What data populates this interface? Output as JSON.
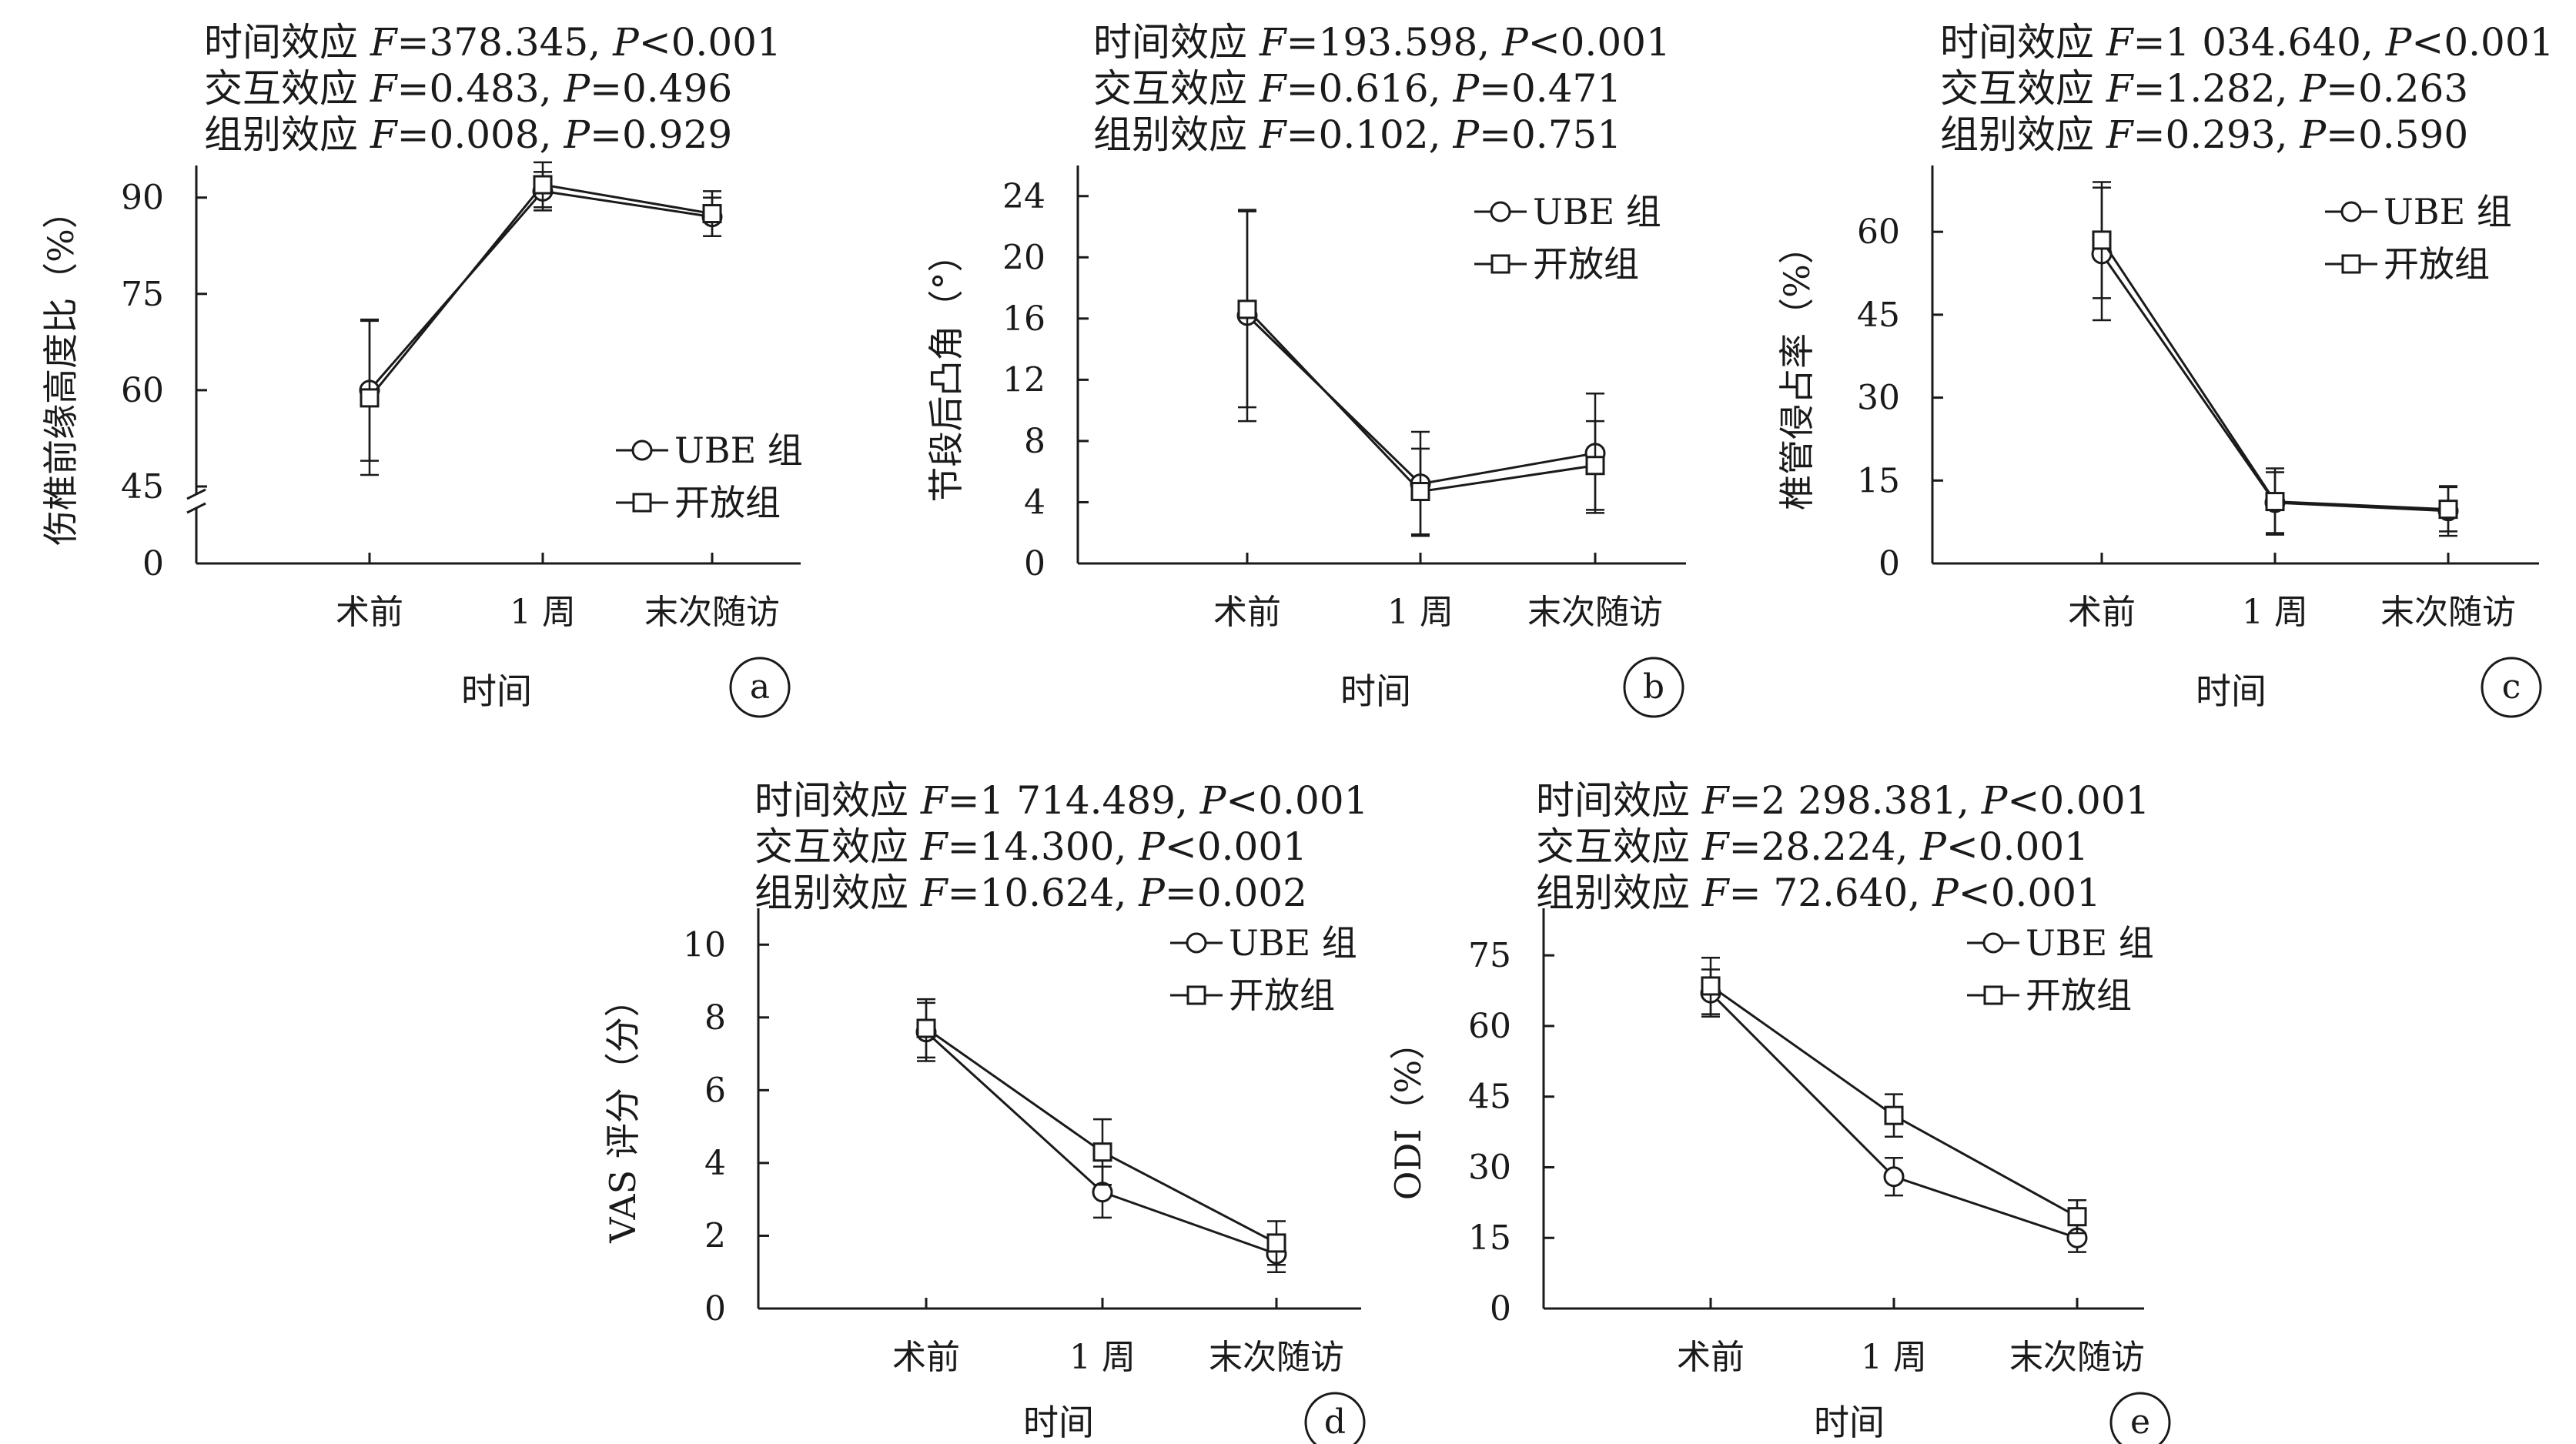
{
  "chart_data": [
    {
      "panel": "a",
      "type": "line",
      "annotations": [
        "时间效应 F=378.345, P<0.001",
        "交互效应 F=0.483, P=0.496",
        "组别效应 F=0.008, P=0.929"
      ],
      "xlabel": "时间",
      "ylabel": "伤椎前缘高度比（%）",
      "categories": [
        "术前",
        "1 周",
        "末次随访"
      ],
      "yticks": [
        0,
        45,
        60,
        75,
        90
      ],
      "ylim": [
        0,
        95
      ],
      "axis_break": [
        0,
        45
      ],
      "series": [
        {
          "name": "UBE 组",
          "marker": "circle",
          "values": [
            60.0,
            91.0,
            87.0
          ],
          "err": [
            11.0,
            3.0,
            3.0
          ]
        },
        {
          "name": "开放组",
          "marker": "square",
          "values": [
            58.8,
            92.0,
            87.5
          ],
          "err": [
            12.0,
            3.5,
            3.5
          ]
        }
      ]
    },
    {
      "panel": "b",
      "type": "line",
      "annotations": [
        "时间效应 F=193.598, P<0.001",
        "交互效应 F=0.616, P=0.471",
        "组别效应 F=0.102, P=0.751"
      ],
      "xlabel": "时间",
      "ylabel": "节段后凸角（°）",
      "categories": [
        "术前",
        "1 周",
        "末次随访"
      ],
      "yticks": [
        0,
        4,
        8,
        12,
        16,
        20,
        24
      ],
      "ylim": [
        0,
        26
      ],
      "series": [
        {
          "name": "UBE 组",
          "marker": "circle",
          "values": [
            16.2,
            5.2,
            7.2
          ],
          "err": [
            6.9,
            3.4,
            3.9
          ]
        },
        {
          "name": "开放组",
          "marker": "square",
          "values": [
            16.6,
            4.7,
            6.4
          ],
          "err": [
            6.4,
            2.8,
            2.9
          ]
        }
      ]
    },
    {
      "panel": "c",
      "type": "line",
      "annotations": [
        "时间效应 F=1 034.640, P<0.001",
        "交互效应 F=1.282, P=0.263",
        "组别效应 F=0.293, P=0.590"
      ],
      "xlabel": "时间",
      "ylabel": "椎管侵占率（%）",
      "categories": [
        "术前",
        "1 周",
        "末次随访"
      ],
      "yticks": [
        0,
        15,
        30,
        45,
        60
      ],
      "ylim": [
        0,
        72
      ],
      "series": [
        {
          "name": "UBE 组",
          "marker": "circle",
          "values": [
            56.0,
            11.0,
            9.5
          ],
          "err": [
            12.0,
            5.5,
            4.5
          ]
        },
        {
          "name": "开放组",
          "marker": "square",
          "values": [
            58.5,
            11.2,
            9.8
          ],
          "err": [
            10.5,
            6.0,
            4.0
          ]
        }
      ]
    },
    {
      "panel": "d",
      "type": "line",
      "annotations": [
        "时间效应 F=1 714.489, P<0.001",
        "交互效应 F=14.300, P<0.001",
        "组别效应 F=10.624, P=0.002"
      ],
      "xlabel": "时间",
      "ylabel": "VAS 评分（分）",
      "categories": [
        "术前",
        "1 周",
        "末次随访"
      ],
      "yticks": [
        0,
        2,
        4,
        6,
        8,
        10
      ],
      "ylim": [
        0,
        11
      ],
      "series": [
        {
          "name": "UBE 组",
          "marker": "circle",
          "values": [
            7.6,
            3.2,
            1.5
          ],
          "err": [
            0.8,
            0.7,
            0.5
          ]
        },
        {
          "name": "开放组",
          "marker": "square",
          "values": [
            7.7,
            4.3,
            1.8
          ],
          "err": [
            0.8,
            0.9,
            0.6
          ]
        }
      ]
    },
    {
      "panel": "e",
      "type": "line",
      "annotations": [
        "时间效应 F=2 298.381, P<0.001",
        "交互效应 F=28.224, P<0.001",
        "组别效应 F= 72.640, P<0.001"
      ],
      "xlabel": "时间",
      "ylabel": "ODI（%）",
      "categories": [
        "术前",
        "1 周",
        "末次随访"
      ],
      "yticks": [
        0,
        15,
        30,
        45,
        60,
        75
      ],
      "ylim": [
        0,
        85
      ],
      "series": [
        {
          "name": "UBE 组",
          "marker": "circle",
          "values": [
            67.0,
            28.0,
            15.0
          ],
          "err": [
            5.0,
            4.0,
            3.0
          ]
        },
        {
          "name": "开放组",
          "marker": "square",
          "values": [
            68.5,
            41.0,
            19.5
          ],
          "err": [
            6.0,
            4.5,
            3.5
          ]
        }
      ]
    }
  ]
}
